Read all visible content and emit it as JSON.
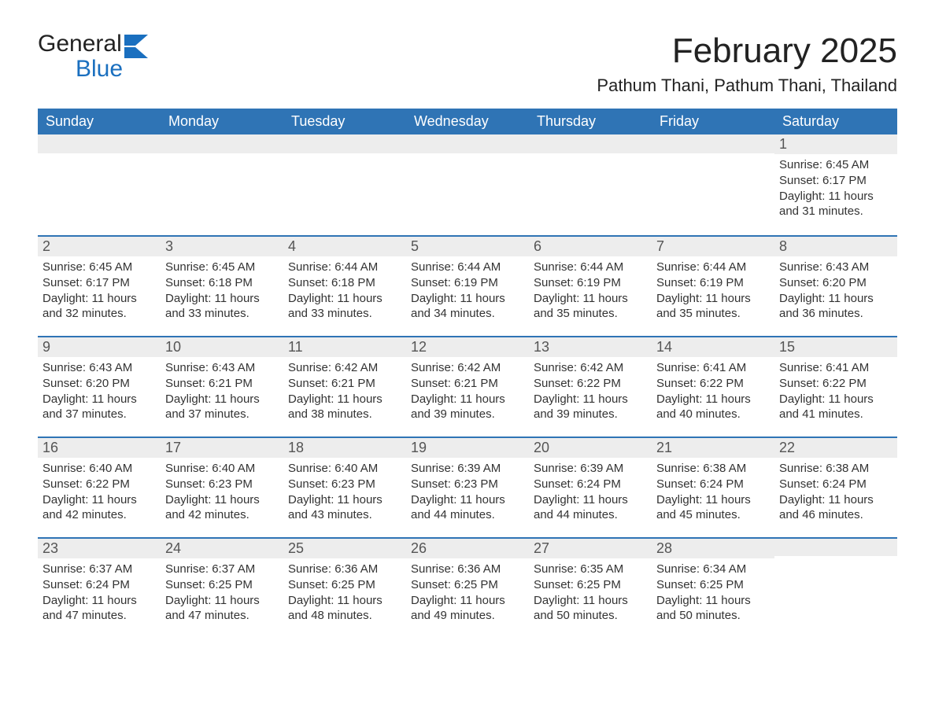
{
  "logo": {
    "line1": "General",
    "line2": "Blue",
    "flag_color": "#1a6fbf",
    "text_color": "#222222",
    "blue_color": "#1a6fbf"
  },
  "header": {
    "month_title": "February 2025",
    "location": "Pathum Thani, Pathum Thani, Thailand"
  },
  "colors": {
    "header_bg": "#2f74b5",
    "header_text": "#ffffff",
    "daynum_bg": "#ededed",
    "daynum_border": "#2f74b5",
    "body_text": "#333333",
    "background": "#ffffff"
  },
  "typography": {
    "month_title_fontsize": 44,
    "location_fontsize": 22,
    "weekday_fontsize": 18,
    "daynum_fontsize": 18,
    "body_fontsize": 15
  },
  "weekdays": [
    "Sunday",
    "Monday",
    "Tuesday",
    "Wednesday",
    "Thursday",
    "Friday",
    "Saturday"
  ],
  "weeks": [
    [
      {
        "n": "",
        "sunrise": "",
        "sunset": "",
        "daylight": ""
      },
      {
        "n": "",
        "sunrise": "",
        "sunset": "",
        "daylight": ""
      },
      {
        "n": "",
        "sunrise": "",
        "sunset": "",
        "daylight": ""
      },
      {
        "n": "",
        "sunrise": "",
        "sunset": "",
        "daylight": ""
      },
      {
        "n": "",
        "sunrise": "",
        "sunset": "",
        "daylight": ""
      },
      {
        "n": "",
        "sunrise": "",
        "sunset": "",
        "daylight": ""
      },
      {
        "n": "1",
        "sunrise": "Sunrise: 6:45 AM",
        "sunset": "Sunset: 6:17 PM",
        "daylight": "Daylight: 11 hours and 31 minutes."
      }
    ],
    [
      {
        "n": "2",
        "sunrise": "Sunrise: 6:45 AM",
        "sunset": "Sunset: 6:17 PM",
        "daylight": "Daylight: 11 hours and 32 minutes."
      },
      {
        "n": "3",
        "sunrise": "Sunrise: 6:45 AM",
        "sunset": "Sunset: 6:18 PM",
        "daylight": "Daylight: 11 hours and 33 minutes."
      },
      {
        "n": "4",
        "sunrise": "Sunrise: 6:44 AM",
        "sunset": "Sunset: 6:18 PM",
        "daylight": "Daylight: 11 hours and 33 minutes."
      },
      {
        "n": "5",
        "sunrise": "Sunrise: 6:44 AM",
        "sunset": "Sunset: 6:19 PM",
        "daylight": "Daylight: 11 hours and 34 minutes."
      },
      {
        "n": "6",
        "sunrise": "Sunrise: 6:44 AM",
        "sunset": "Sunset: 6:19 PM",
        "daylight": "Daylight: 11 hours and 35 minutes."
      },
      {
        "n": "7",
        "sunrise": "Sunrise: 6:44 AM",
        "sunset": "Sunset: 6:19 PM",
        "daylight": "Daylight: 11 hours and 35 minutes."
      },
      {
        "n": "8",
        "sunrise": "Sunrise: 6:43 AM",
        "sunset": "Sunset: 6:20 PM",
        "daylight": "Daylight: 11 hours and 36 minutes."
      }
    ],
    [
      {
        "n": "9",
        "sunrise": "Sunrise: 6:43 AM",
        "sunset": "Sunset: 6:20 PM",
        "daylight": "Daylight: 11 hours and 37 minutes."
      },
      {
        "n": "10",
        "sunrise": "Sunrise: 6:43 AM",
        "sunset": "Sunset: 6:21 PM",
        "daylight": "Daylight: 11 hours and 37 minutes."
      },
      {
        "n": "11",
        "sunrise": "Sunrise: 6:42 AM",
        "sunset": "Sunset: 6:21 PM",
        "daylight": "Daylight: 11 hours and 38 minutes."
      },
      {
        "n": "12",
        "sunrise": "Sunrise: 6:42 AM",
        "sunset": "Sunset: 6:21 PM",
        "daylight": "Daylight: 11 hours and 39 minutes."
      },
      {
        "n": "13",
        "sunrise": "Sunrise: 6:42 AM",
        "sunset": "Sunset: 6:22 PM",
        "daylight": "Daylight: 11 hours and 39 minutes."
      },
      {
        "n": "14",
        "sunrise": "Sunrise: 6:41 AM",
        "sunset": "Sunset: 6:22 PM",
        "daylight": "Daylight: 11 hours and 40 minutes."
      },
      {
        "n": "15",
        "sunrise": "Sunrise: 6:41 AM",
        "sunset": "Sunset: 6:22 PM",
        "daylight": "Daylight: 11 hours and 41 minutes."
      }
    ],
    [
      {
        "n": "16",
        "sunrise": "Sunrise: 6:40 AM",
        "sunset": "Sunset: 6:22 PM",
        "daylight": "Daylight: 11 hours and 42 minutes."
      },
      {
        "n": "17",
        "sunrise": "Sunrise: 6:40 AM",
        "sunset": "Sunset: 6:23 PM",
        "daylight": "Daylight: 11 hours and 42 minutes."
      },
      {
        "n": "18",
        "sunrise": "Sunrise: 6:40 AM",
        "sunset": "Sunset: 6:23 PM",
        "daylight": "Daylight: 11 hours and 43 minutes."
      },
      {
        "n": "19",
        "sunrise": "Sunrise: 6:39 AM",
        "sunset": "Sunset: 6:23 PM",
        "daylight": "Daylight: 11 hours and 44 minutes."
      },
      {
        "n": "20",
        "sunrise": "Sunrise: 6:39 AM",
        "sunset": "Sunset: 6:24 PM",
        "daylight": "Daylight: 11 hours and 44 minutes."
      },
      {
        "n": "21",
        "sunrise": "Sunrise: 6:38 AM",
        "sunset": "Sunset: 6:24 PM",
        "daylight": "Daylight: 11 hours and 45 minutes."
      },
      {
        "n": "22",
        "sunrise": "Sunrise: 6:38 AM",
        "sunset": "Sunset: 6:24 PM",
        "daylight": "Daylight: 11 hours and 46 minutes."
      }
    ],
    [
      {
        "n": "23",
        "sunrise": "Sunrise: 6:37 AM",
        "sunset": "Sunset: 6:24 PM",
        "daylight": "Daylight: 11 hours and 47 minutes."
      },
      {
        "n": "24",
        "sunrise": "Sunrise: 6:37 AM",
        "sunset": "Sunset: 6:25 PM",
        "daylight": "Daylight: 11 hours and 47 minutes."
      },
      {
        "n": "25",
        "sunrise": "Sunrise: 6:36 AM",
        "sunset": "Sunset: 6:25 PM",
        "daylight": "Daylight: 11 hours and 48 minutes."
      },
      {
        "n": "26",
        "sunrise": "Sunrise: 6:36 AM",
        "sunset": "Sunset: 6:25 PM",
        "daylight": "Daylight: 11 hours and 49 minutes."
      },
      {
        "n": "27",
        "sunrise": "Sunrise: 6:35 AM",
        "sunset": "Sunset: 6:25 PM",
        "daylight": "Daylight: 11 hours and 50 minutes."
      },
      {
        "n": "28",
        "sunrise": "Sunrise: 6:34 AM",
        "sunset": "Sunset: 6:25 PM",
        "daylight": "Daylight: 11 hours and 50 minutes."
      },
      {
        "n": "",
        "sunrise": "",
        "sunset": "",
        "daylight": ""
      }
    ]
  ]
}
